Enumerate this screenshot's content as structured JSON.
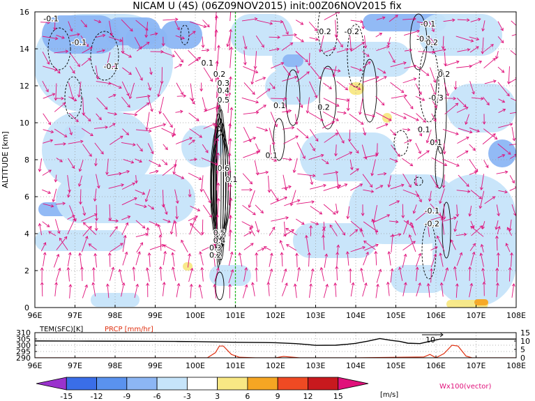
{
  "title": "NICAM U (4S) (06Z09NOV2015) init:00Z06NOV2015 fix",
  "colors": {
    "vector": "#e0107a",
    "contour": "#000000",
    "marker_line": "#22bb22",
    "temp_line": "#000000",
    "prcp_line": "#e03010",
    "grid": "#999999"
  },
  "chart_data": [
    {
      "type": "heatmap",
      "name": "main",
      "variable": "U (zonal wind)",
      "units": "m/s",
      "ylabel": "ALTITUDE [km]",
      "xlim": [
        96,
        108
      ],
      "ylim": [
        0,
        16
      ],
      "x_ticks": [
        "96E",
        "97E",
        "98E",
        "99E",
        "100E",
        "101E",
        "102E",
        "103E",
        "104E",
        "105E",
        "106E",
        "107E",
        "108E"
      ],
      "y_ticks": [
        "0",
        "2",
        "4",
        "6",
        "8",
        "10",
        "12",
        "14",
        "16"
      ],
      "grid": true,
      "marker_longitude": 101.0,
      "contour_labels": [
        {
          "text": "-0.1",
          "x": 96.4,
          "y": 15.5
        },
        {
          "text": "-0.1",
          "x": 97.1,
          "y": 14.2
        },
        {
          "text": "-0.1",
          "x": 97.9,
          "y": 12.9
        },
        {
          "text": "0.1",
          "x": 100.3,
          "y": 13.1
        },
        {
          "text": "0.2",
          "x": 100.6,
          "y": 12.5
        },
        {
          "text": "0.3",
          "x": 100.7,
          "y": 12.0
        },
        {
          "text": "0.4",
          "x": 100.7,
          "y": 11.6
        },
        {
          "text": "0.5",
          "x": 100.7,
          "y": 11.1
        },
        {
          "text": "0.6",
          "x": 100.7,
          "y": 7.4
        },
        {
          "text": "0.1",
          "x": 100.9,
          "y": 6.8
        },
        {
          "text": "0.5",
          "x": 100.6,
          "y": 3.9
        },
        {
          "text": "0.4",
          "x": 100.6,
          "y": 3.5
        },
        {
          "text": "0.3",
          "x": 100.5,
          "y": 3.1
        },
        {
          "text": "0.2",
          "x": 100.5,
          "y": 2.7
        },
        {
          "text": "0.1",
          "x": 102.1,
          "y": 10.8
        },
        {
          "text": "0.1",
          "x": 101.9,
          "y": 8.1
        },
        {
          "text": "-0.2",
          "x": 103.2,
          "y": 14.8
        },
        {
          "text": "-0.2",
          "x": 103.9,
          "y": 14.8
        },
        {
          "text": "0.2",
          "x": 103.2,
          "y": 10.7
        },
        {
          "text": "-0.1",
          "x": 105.7,
          "y": 14.4
        },
        {
          "text": "-0.1",
          "x": 105.8,
          "y": 15.2
        },
        {
          "text": "0.2",
          "x": 105.9,
          "y": 14.2
        },
        {
          "text": "0.2",
          "x": 106.2,
          "y": 12.5
        },
        {
          "text": "-0.3",
          "x": 106.0,
          "y": 11.2
        },
        {
          "text": "0.1",
          "x": 105.7,
          "y": 9.5
        },
        {
          "text": "0.1",
          "x": 106.0,
          "y": 8.8
        },
        {
          "text": "-0.1",
          "x": 105.9,
          "y": 5.1
        },
        {
          "text": "-0.2",
          "x": 105.9,
          "y": 4.4
        }
      ]
    },
    {
      "type": "line",
      "name": "surface",
      "xlim": [
        96,
        108
      ],
      "x_ticks": [
        "96E",
        "97E",
        "98E",
        "99E",
        "100E",
        "101E",
        "102E",
        "103E",
        "104E",
        "105E",
        "106E",
        "107E",
        "108E"
      ],
      "left_axis": {
        "label": "TEM(SFC)[K]",
        "ticks": [
          "290",
          "295",
          "300",
          "305",
          "310"
        ],
        "range": [
          290,
          310
        ]
      },
      "right_axis": {
        "label": "PRCP [mm/hr]",
        "ticks": [
          "0",
          "5",
          "10",
          "15"
        ],
        "range": [
          0,
          15
        ]
      },
      "series": [
        {
          "name": "TEM(SFC)[K]",
          "axis": "left",
          "x": [
            96.0,
            97.0,
            98.0,
            99.0,
            99.5,
            100.0,
            100.5,
            101.0,
            101.5,
            102.0,
            102.5,
            102.8,
            103.0,
            103.5,
            103.8,
            104.0,
            104.3,
            104.6,
            104.9,
            105.1,
            105.3,
            105.6,
            105.9,
            106.1,
            106.5,
            107.0,
            108.0
          ],
          "values": [
            303.4,
            303.3,
            303.2,
            303.1,
            303.0,
            302.9,
            302.6,
            302.3,
            302.2,
            302.0,
            301.3,
            300.5,
            299.9,
            300.0,
            300.8,
            301.5,
            303.2,
            305.3,
            303.8,
            303.0,
            301.6,
            301.3,
            303.5,
            304.9,
            304.9,
            304.9,
            304.9
          ]
        },
        {
          "name": "PRCP [mm/hr]",
          "axis": "right",
          "x": [
            96.0,
            100.3,
            100.5,
            100.6,
            100.7,
            100.9,
            101.1,
            101.5,
            102.0,
            102.2,
            102.6,
            103.0,
            104.0,
            105.7,
            105.85,
            106.0,
            106.2,
            106.4,
            106.55,
            106.75,
            106.9,
            108.0
          ],
          "values": [
            0,
            0,
            3,
            7,
            7,
            2,
            0.3,
            0,
            0,
            0.8,
            0,
            0,
            0,
            0.5,
            2,
            0,
            2.5,
            7.5,
            7,
            1,
            0,
            0
          ]
        }
      ],
      "annotation": {
        "text": "10",
        "x": 106.0
      }
    },
    {
      "type": "colorbar",
      "name": "legend",
      "units": "[m/s]",
      "tick_labels": [
        "-15",
        "-12",
        "-9",
        "-6",
        "-3",
        "3",
        "6",
        "9",
        "12",
        "15"
      ],
      "bounds": [
        -15,
        -12,
        -9,
        -6,
        -3,
        3,
        6,
        9,
        12,
        15
      ],
      "colors": [
        "#9a32cd",
        "#3a6ee8",
        "#5a92ee",
        "#8cb6f4",
        "#c6e4fa",
        "#ffffff",
        "#f8e884",
        "#f5a623",
        "#ef4a23",
        "#c8191e",
        "#e0107a"
      ],
      "vector_label": "Wx100(vector)"
    }
  ]
}
